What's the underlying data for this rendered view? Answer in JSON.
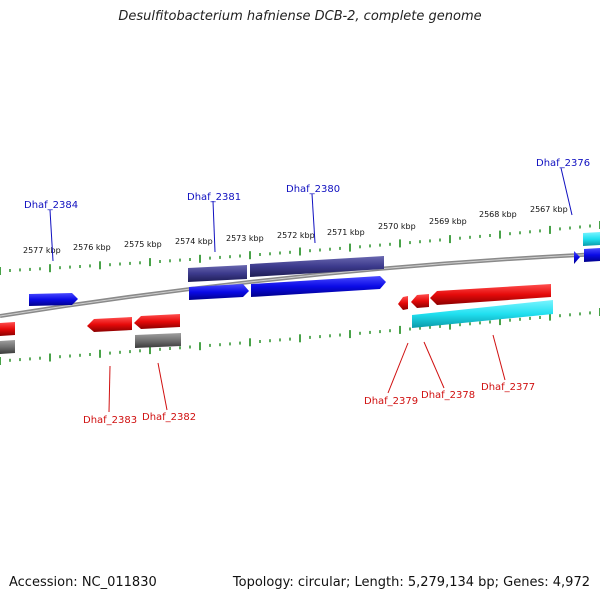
{
  "title": "Desulfitobacterium hafniense DCB-2, complete genome",
  "footer": {
    "accession": "Accession: NC_011830",
    "summary": "Topology: circular; Length: 5,279,134 bp; Genes: 4,972"
  },
  "colors": {
    "forward_cds": "#0a0ae6",
    "forward_cds_dark": "#3c3a8c",
    "reverse_cds": "#e60a0a",
    "reverse_rna": "#20e0f0",
    "pseudo": "#707070",
    "backbone": "#8a8a8a",
    "ticks": "#1a8a1a",
    "label_forward": "#1010c0",
    "label_reverse": "#d01010"
  },
  "scale_labels": [
    "2577 kbp",
    "2576 kbp",
    "2575 kbp",
    "2574 kbp",
    "2573 kbp",
    "2572 kbp",
    "2571 kbp",
    "2570 kbp",
    "2569 kbp",
    "2568 kbp",
    "2567 kbp"
  ],
  "gene_labels": {
    "forward": [
      "Dhaf_2384",
      "Dhaf_2381",
      "Dhaf_2380",
      "Dhaf_2376"
    ],
    "reverse": [
      "Dhaf_2383",
      "Dhaf_2382",
      "Dhaf_2379",
      "Dhaf_2378",
      "Dhaf_2377"
    ]
  }
}
